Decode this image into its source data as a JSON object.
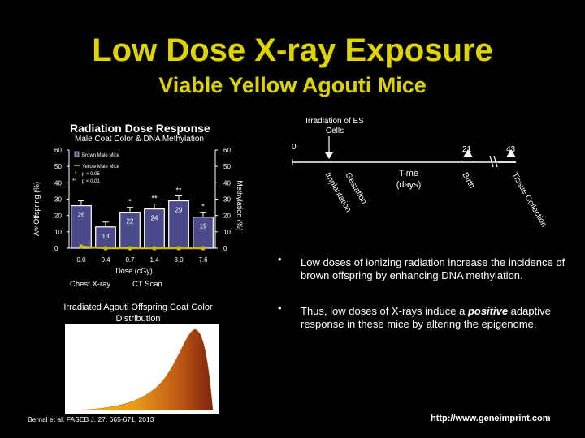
{
  "slide": {
    "title": "Low Dose X-ray Exposure",
    "subtitle": "Viable Yellow Agouti Mice"
  },
  "dose_panel": {
    "title": "Radiation Dose Response",
    "subtitle": "Male Coat Color & DNA Methylation",
    "legend_brown": "Brown Male Mice",
    "legend_yellow": "Yellow Male Mice",
    "sig1_symbol": "*",
    "sig1_text": "p < 0.05",
    "sig2_symbol": "**",
    "sig2_text": "p < 0.01",
    "xlabel": "Dose (cGy)",
    "ylabel_left": "Aᵛʸ Offspring (%)",
    "ylabel_right": "Methylation (%)",
    "chest_xray": "Chest X-ray",
    "ct_scan": "CT Scan"
  },
  "chart_data": [
    {
      "type": "bar",
      "categories": [
        "0.0",
        "0.4",
        "0.7",
        "1.4",
        "3.0",
        "7.6"
      ],
      "series": [
        {
          "name": "Brown Male Mice",
          "values": [
            26,
            13,
            22,
            24,
            29,
            19
          ],
          "significance": [
            "",
            "",
            "*",
            "**",
            "**",
            "*"
          ]
        },
        {
          "name": "Yellow Male Mice",
          "values": [
            1,
            0,
            0,
            0,
            0,
            0
          ]
        }
      ],
      "bar_labels": [
        "26",
        "13",
        "22",
        "24",
        "29",
        "19"
      ],
      "ylim": [
        0,
        60
      ],
      "yticks": [
        0,
        10,
        20,
        30,
        40,
        50,
        60
      ],
      "xlabel": "Dose (cGy)",
      "ylabel": "Aᵛʸ Offspring (%)",
      "y2label": "Methylation (%)",
      "legend": [
        "Brown Male Mice",
        "Yellow Male Mice"
      ],
      "colors": {
        "brown_bars": "#4b4b8c",
        "yellow_line": "#ccb800",
        "bar_outline": "#ffffff"
      }
    },
    {
      "type": "area",
      "title": "Irradiated Agouti Offspring Coat Color Distribution",
      "description_colors": [
        "#f0c020",
        "#e07010",
        "#8b2a10"
      ]
    }
  ],
  "timeline": {
    "irradiation_label": "Irradiation of ES Cells",
    "time_label": "Time (days)",
    "ticks": [
      "0",
      "21",
      "43"
    ],
    "events": [
      "Implantation",
      "Gestation",
      "Birth",
      "Tissue Collection"
    ]
  },
  "bullets": [
    "Low doses of ionizing radiation increase the incidence of brown offspring by enhancing DNA methylation.",
    "Thus, low doses of X-rays induce a positive adaptive response in these mice by altering the epigenome."
  ],
  "bullet_emphasis": "positive",
  "bullet2_before": "Thus, low doses of X-rays induce a ",
  "bullet2_after": " adaptive response in these mice by altering the epigenome.",
  "footer": {
    "reference": "Bernal et al. FASEB J. 27: 665-671, 2013",
    "url": "http://www.geneimprint.com"
  }
}
